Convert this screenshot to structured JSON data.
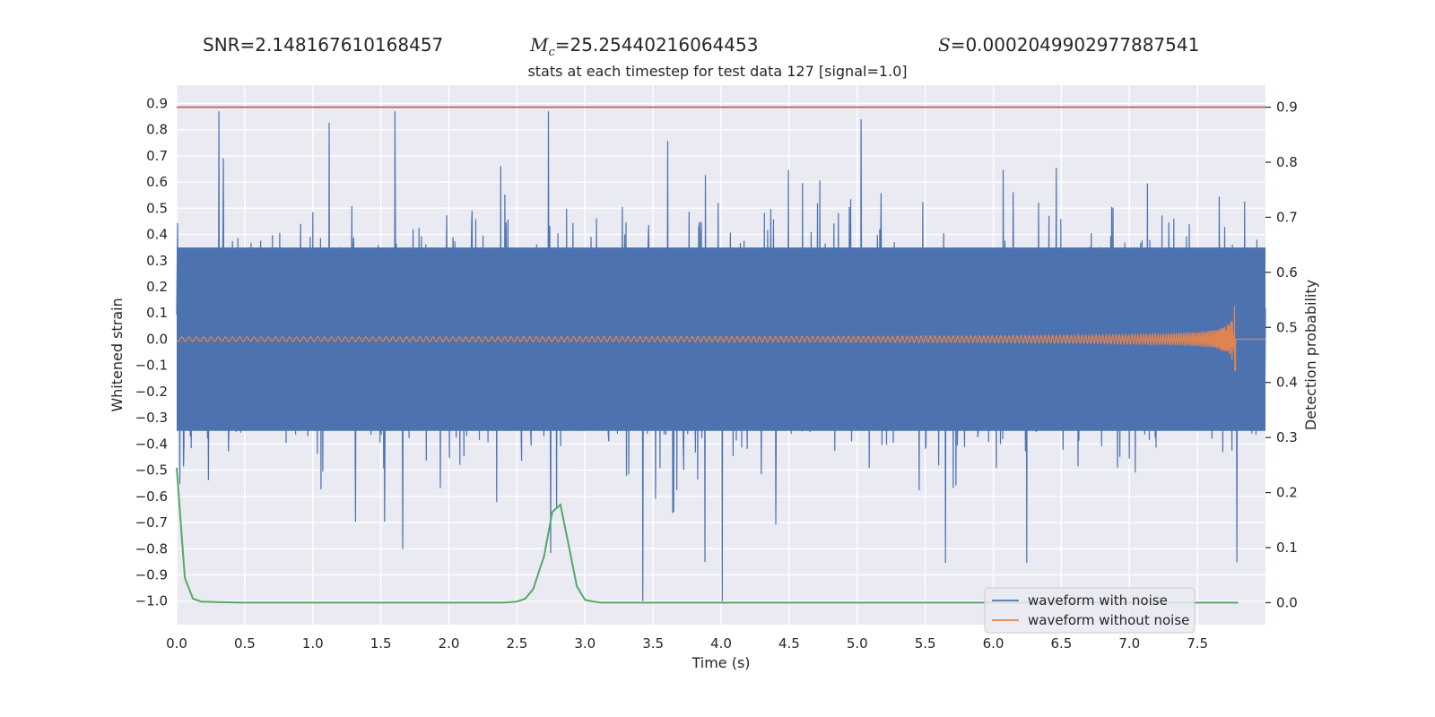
{
  "header": {
    "snr_text": "SNR=2.148167610168457",
    "mc_symbol": "M",
    "mc_subscript": "c",
    "mc_value": "=25.25440216064453",
    "s_symbol": "S",
    "s_value": "=0.0002049902977887541"
  },
  "chart_data": {
    "type": "line",
    "title": "stats at each timestep for test data 127 [signal=1.0]",
    "xlabel": "Time (s)",
    "ylabel": "Whitened strain",
    "y2label": "Detection probability",
    "xlim": [
      0.0,
      8.0
    ],
    "ylim": [
      -1.09,
      0.97
    ],
    "y2lim": [
      -0.04,
      0.94
    ],
    "x_ticks": [
      "0.0",
      "0.5",
      "1.0",
      "1.5",
      "2.0",
      "2.5",
      "3.0",
      "3.5",
      "4.0",
      "4.5",
      "5.0",
      "5.5",
      "6.0",
      "6.5",
      "7.0",
      "7.5"
    ],
    "y_ticks": [
      "0.9",
      "0.8",
      "0.7",
      "0.6",
      "0.5",
      "0.4",
      "0.3",
      "0.2",
      "0.1",
      "0.0",
      "-0.1",
      "-0.2",
      "-0.3",
      "-0.4",
      "-0.5",
      "-0.6",
      "-0.7",
      "-0.8",
      "-0.9",
      "-1.0"
    ],
    "y2_ticks": [
      "0.9",
      "0.8",
      "0.7",
      "0.6",
      "0.5",
      "0.4",
      "0.3",
      "0.2",
      "0.1",
      "0.0"
    ],
    "threshold": {
      "value": 0.9,
      "color": "#c44e52"
    },
    "legend": {
      "placement": "lower right",
      "entries": [
        "waveform with noise",
        "waveform without noise"
      ]
    },
    "grid": true,
    "colors": {
      "noisy": "#4c72b0",
      "clean": "#dd8452",
      "probability": "#55a868",
      "background": "#eaeaf2"
    },
    "series": [
      {
        "name": "waveform with noise",
        "axis": "left",
        "description_envelope": {
          "x_range": [
            0.0,
            8.0
          ],
          "typical_range": [
            -0.35,
            0.35
          ],
          "peak_max": 0.87,
          "peak_min": -1.0
        }
      },
      {
        "name": "waveform without noise",
        "axis": "left",
        "chirp": {
          "x_start": 0.0,
          "x_end": 7.78,
          "final_amplitude": 0.16,
          "final_frequency_hz": 60
        }
      },
      {
        "axis": "right",
        "x": [
          0.0,
          0.06,
          0.12,
          0.18,
          0.3,
          0.5,
          1.0,
          1.5,
          2.0,
          2.4,
          2.5,
          2.56,
          2.62,
          2.7,
          2.76,
          2.82,
          2.88,
          2.94,
          3.0,
          3.06,
          3.12,
          3.5,
          4.0,
          5.0,
          6.0,
          7.0,
          7.8
        ],
        "y": [
          0.245,
          0.045,
          0.007,
          0.002,
          0.001,
          0.0,
          0.0,
          0.0,
          0.0,
          0.0,
          0.002,
          0.007,
          0.025,
          0.085,
          0.165,
          0.178,
          0.105,
          0.03,
          0.005,
          0.002,
          0.0,
          0.0,
          0.0,
          0.0,
          0.0,
          0.0,
          0.0
        ]
      }
    ]
  }
}
